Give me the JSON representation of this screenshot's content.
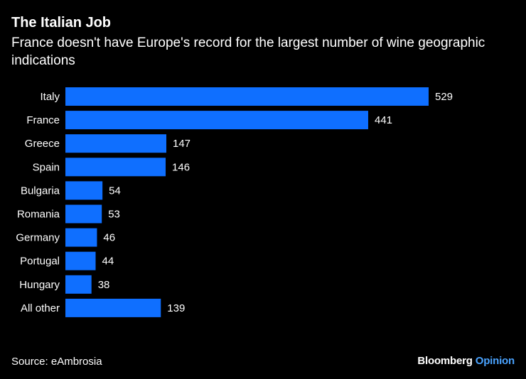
{
  "chart_data": {
    "type": "bar",
    "orientation": "horizontal",
    "title": "The Italian Job",
    "subtitle": "France doesn't have Europe's record for the largest number of wine geographic indications",
    "categories": [
      "Italy",
      "France",
      "Greece",
      "Spain",
      "Bulgaria",
      "Romania",
      "Germany",
      "Portugal",
      "Hungary",
      "All other"
    ],
    "values": [
      529,
      441,
      147,
      146,
      54,
      53,
      46,
      44,
      38,
      139
    ],
    "xlabel": "",
    "ylabel": "",
    "xlim": [
      0,
      529
    ],
    "grid": false,
    "bar_color": "#0f6fff",
    "source": "Source: eAmbrosia"
  },
  "footer": {
    "brand_main": "Bloomberg",
    "brand_accent": "Opinion"
  }
}
